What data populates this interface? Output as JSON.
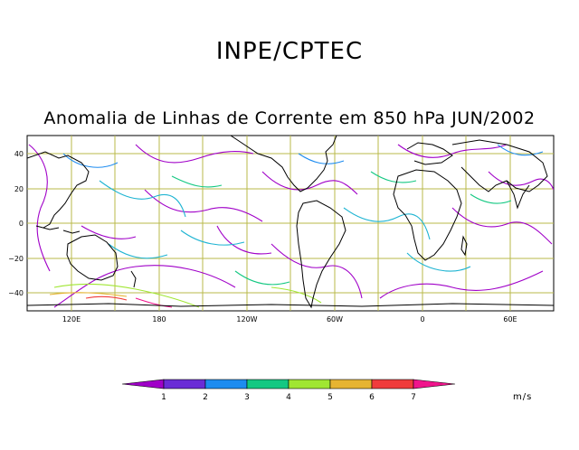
{
  "header": {
    "org": "INPE/CPTEC",
    "title": "Anomalia de Linhas de Corrente em 850 hPa JUN/2002"
  },
  "map": {
    "lat_labels": [
      "40",
      "20",
      "0",
      "−20",
      "−40"
    ],
    "lon_labels": [
      "120E",
      "180",
      "120W",
      "60W",
      "0",
      "60E"
    ],
    "grid_color": "#b8b84a"
  },
  "colorbar": {
    "labels": [
      "1",
      "2",
      "3",
      "4",
      "5",
      "6",
      "7"
    ],
    "colors": [
      "#a000c8",
      "#6a2cd6",
      "#1e8cf0",
      "#14c882",
      "#a0e632",
      "#e6b432",
      "#f03c3c",
      "#f0148c"
    ],
    "units": "m/s"
  }
}
